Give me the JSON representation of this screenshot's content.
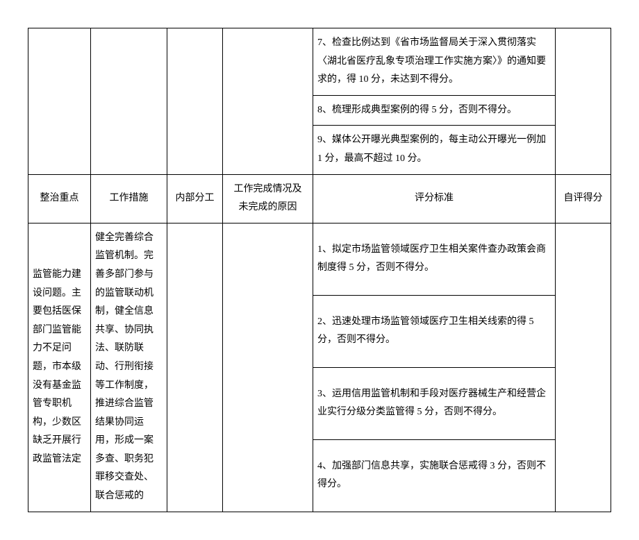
{
  "top_rows": {
    "r7": "7、检查比例达到《省市场监督局关于深入贯彻落实〈湖北省医疗乱象专项治理工作实施方案〉》的通知要求的，得 10 分，未达到不得分。",
    "r8": "8、梳理形成典型案例的得 5 分，否则不得分。",
    "r9": "9、媒体公开曝光典型案例的，每主动公开曝光一例加 1 分，最高不超过 10 分。"
  },
  "header": {
    "c1": "整治重点",
    "c2": "工作措施",
    "c3": "内部分工",
    "c4_line1": "工作完成情况及",
    "c4_line2": "未完成的原因",
    "c5": "评分标准",
    "c6": "自评得分"
  },
  "body": {
    "col1": "监管能力建设问题。主要包括医保部门监管能力不足问题，市本级没有基金监管专职机构，少数区缺乏开展行政监管法定",
    "col2": "健全完善综合监管机制。完善多部门参与的监管联动机制，健全信息共享、协同执法、联防联动、行刑衔接等工作制度，推进综合监管结果协同运用，形成一案多查、职务犯罪移交查处、联合惩戒的",
    "criteria": {
      "r1": "1、拟定市场监管领域医疗卫生相关案件查办政策会商制度得 5 分，否则不得分。",
      "r2": "2、迅速处理市场监管领域医疗卫生相关线索的得 5 分，否则不得分。",
      "r3": "3、运用信用监管机制和手段对医疗器械生产和经营企业实行分级分类监管得 5 分，否则不得分。",
      "r4": "4、加强部门信息共享，实施联合惩戒得 3 分，否则不得分。"
    }
  }
}
